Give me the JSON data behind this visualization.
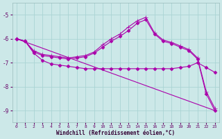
{
  "xlabel": "Windchill (Refroidissement éolien,°C)",
  "bg_color": "#cce8e8",
  "grid_color": "#aad4d4",
  "line_color": "#aa00aa",
  "xlim": [
    -0.5,
    23.5
  ],
  "ylim": [
    -9.5,
    -4.5
  ],
  "yticks": [
    -9,
    -8,
    -7,
    -6,
    -5
  ],
  "xticks": [
    0,
    1,
    2,
    3,
    4,
    5,
    6,
    7,
    8,
    9,
    10,
    11,
    12,
    13,
    14,
    15,
    16,
    17,
    18,
    19,
    20,
    21,
    22,
    23
  ],
  "lines": [
    {
      "x": [
        0,
        23
      ],
      "y": [
        -6.0,
        -9.0
      ],
      "marker": null,
      "linewidth": 0.8
    },
    {
      "x": [
        0,
        1,
        2,
        3,
        4,
        5,
        6,
        7,
        8,
        9,
        10,
        11,
        12,
        13,
        14,
        15,
        16,
        17,
        18,
        19,
        20,
        21,
        22,
        23
      ],
      "y": [
        -6.0,
        -6.1,
        -6.55,
        -6.7,
        -6.75,
        -6.8,
        -6.85,
        -6.8,
        -6.75,
        -6.6,
        -6.35,
        -6.1,
        -5.9,
        -5.65,
        -5.35,
        -5.2,
        -5.8,
        -6.1,
        -6.2,
        -6.35,
        -6.5,
        -6.85,
        -8.3,
        -9.0
      ],
      "marker": "D",
      "markersize": 2.5,
      "linewidth": 0.8
    },
    {
      "x": [
        0,
        1,
        2,
        3,
        4,
        5,
        6,
        7,
        8,
        9,
        10,
        11,
        12,
        13,
        14,
        15,
        16,
        17,
        18,
        19,
        20,
        21,
        22,
        23
      ],
      "y": [
        -6.0,
        -6.1,
        -6.5,
        -6.65,
        -6.7,
        -6.75,
        -6.8,
        -6.75,
        -6.7,
        -6.55,
        -6.25,
        -6.0,
        -5.8,
        -5.5,
        -5.25,
        -5.1,
        -5.75,
        -6.05,
        -6.15,
        -6.3,
        -6.45,
        -6.8,
        -8.2,
        -8.9
      ],
      "marker": "+",
      "markersize": 4,
      "linewidth": 0.8
    },
    {
      "x": [
        0,
        1,
        2,
        3,
        4,
        5,
        6,
        7,
        8,
        9,
        10,
        11,
        12,
        13,
        14,
        15,
        16,
        17,
        18,
        19,
        20,
        21,
        22,
        23
      ],
      "y": [
        -6.0,
        -6.1,
        -6.6,
        -6.9,
        -7.05,
        -7.1,
        -7.15,
        -7.2,
        -7.25,
        -7.25,
        -7.25,
        -7.25,
        -7.25,
        -7.25,
        -7.25,
        -7.25,
        -7.25,
        -7.25,
        -7.25,
        -7.2,
        -7.15,
        -7.0,
        -7.2,
        -7.4
      ],
      "marker": "D",
      "markersize": 2.5,
      "linewidth": 0.8
    }
  ]
}
